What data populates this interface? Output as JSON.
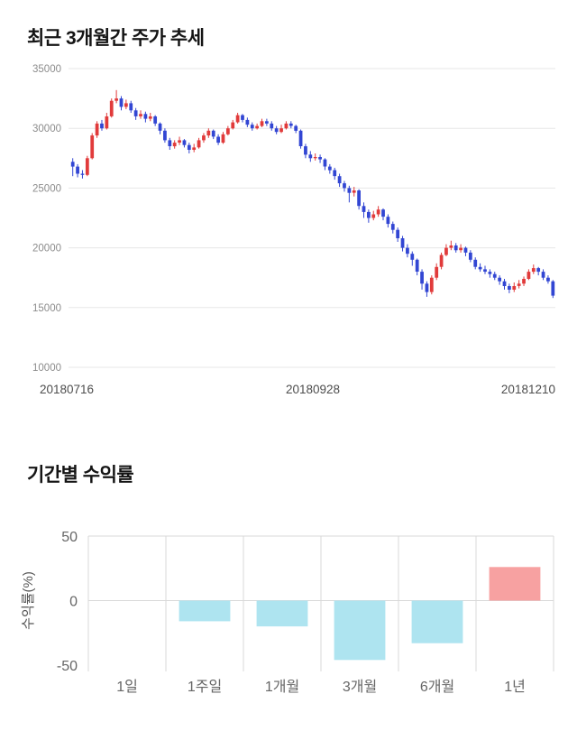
{
  "chart_data": [
    {
      "type": "candlestick",
      "title": "최근 3개월간 주가 추세",
      "ylim": [
        10000,
        35000
      ],
      "yticks": [
        10000,
        15000,
        20000,
        25000,
        30000,
        35000
      ],
      "xtick_labels": [
        "20180716",
        "20180928",
        "20181210"
      ],
      "up_color": "#e13b3b",
      "down_color": "#3246d3",
      "grid_color": "#e7e7e7",
      "candles_ohlc": [
        [
          27200,
          27500,
          26000,
          26800
        ],
        [
          26800,
          27000,
          25900,
          26200
        ],
        [
          26200,
          26500,
          25800,
          26100
        ],
        [
          26100,
          27700,
          26000,
          27500
        ],
        [
          27500,
          29600,
          27400,
          29400
        ],
        [
          29400,
          30600,
          29200,
          30400
        ],
        [
          30400,
          30700,
          29800,
          30000
        ],
        [
          30000,
          31300,
          29900,
          31000
        ],
        [
          31000,
          32500,
          30900,
          32300
        ],
        [
          32300,
          33200,
          32100,
          32500
        ],
        [
          32500,
          32700,
          31500,
          31800
        ],
        [
          31800,
          32400,
          31600,
          32100
        ],
        [
          32100,
          32300,
          31300,
          31500
        ],
        [
          31500,
          31700,
          30700,
          31000
        ],
        [
          31000,
          31500,
          30800,
          31200
        ],
        [
          31200,
          31400,
          30500,
          30800
        ],
        [
          30800,
          31300,
          30600,
          31000
        ],
        [
          31000,
          31100,
          30200,
          30400
        ],
        [
          30400,
          30500,
          29500,
          29800
        ],
        [
          29800,
          30000,
          28800,
          29000
        ],
        [
          29000,
          29200,
          28200,
          28500
        ],
        [
          28500,
          29000,
          28300,
          28800
        ],
        [
          28800,
          29300,
          28600,
          29000
        ],
        [
          29000,
          29100,
          28400,
          28600
        ],
        [
          28600,
          28800,
          27900,
          28200
        ],
        [
          28200,
          28700,
          28000,
          28400
        ],
        [
          28400,
          29200,
          28300,
          29000
        ],
        [
          29000,
          29600,
          28800,
          29400
        ],
        [
          29400,
          30000,
          29200,
          29800
        ],
        [
          29800,
          29900,
          29100,
          29300
        ],
        [
          29300,
          29500,
          28600,
          28800
        ],
        [
          28800,
          29700,
          28700,
          29500
        ],
        [
          29500,
          30200,
          29400,
          30000
        ],
        [
          30000,
          30700,
          29900,
          30500
        ],
        [
          30500,
          31300,
          30400,
          31100
        ],
        [
          31100,
          31200,
          30500,
          30700
        ],
        [
          30700,
          30900,
          30100,
          30300
        ],
        [
          30300,
          30500,
          29800,
          30000
        ],
        [
          30000,
          30400,
          29900,
          30200
        ],
        [
          30200,
          30800,
          30100,
          30600
        ],
        [
          30600,
          30800,
          30200,
          30400
        ],
        [
          30400,
          30600,
          29800,
          30000
        ],
        [
          30000,
          30200,
          29500,
          29700
        ],
        [
          29700,
          30300,
          29600,
          30000
        ],
        [
          30000,
          30600,
          29900,
          30400
        ],
        [
          30400,
          30600,
          30000,
          30200
        ],
        [
          30200,
          30300,
          29600,
          29800
        ],
        [
          29800,
          29900,
          28300,
          28500
        ],
        [
          28500,
          28700,
          27500,
          27800
        ],
        [
          27800,
          28100,
          27200,
          27500
        ],
        [
          27500,
          27900,
          27300,
          27600
        ],
        [
          27600,
          27800,
          27100,
          27400
        ],
        [
          27400,
          27500,
          26500,
          26800
        ],
        [
          26800,
          27000,
          26200,
          26500
        ],
        [
          26500,
          26700,
          25700,
          26000
        ],
        [
          26000,
          26200,
          25100,
          25400
        ],
        [
          25400,
          25600,
          24700,
          25000
        ],
        [
          25000,
          25200,
          23800,
          24600
        ],
        [
          24600,
          25100,
          24300,
          24800
        ],
        [
          24800,
          24900,
          23200,
          23500
        ],
        [
          23500,
          23800,
          22500,
          23000
        ],
        [
          23000,
          23200,
          22100,
          22500
        ],
        [
          22500,
          23100,
          22300,
          22800
        ],
        [
          22800,
          23500,
          22600,
          23200
        ],
        [
          23200,
          23300,
          22300,
          22600
        ],
        [
          22600,
          22800,
          21700,
          22000
        ],
        [
          22000,
          22200,
          21200,
          21500
        ],
        [
          21500,
          21700,
          20500,
          20800
        ],
        [
          20800,
          21000,
          19700,
          20000
        ],
        [
          20000,
          20300,
          19200,
          19500
        ],
        [
          19500,
          19700,
          18500,
          19000
        ],
        [
          19000,
          19100,
          17700,
          18000
        ],
        [
          18000,
          18200,
          16500,
          17000
        ],
        [
          17000,
          17200,
          15900,
          16300
        ],
        [
          16300,
          17700,
          16100,
          17500
        ],
        [
          17500,
          18700,
          17300,
          18400
        ],
        [
          18400,
          19600,
          18200,
          19400
        ],
        [
          19400,
          20300,
          19300,
          20000
        ],
        [
          20000,
          20600,
          19800,
          20200
        ],
        [
          20200,
          20400,
          19600,
          19800
        ],
        [
          19800,
          20300,
          19600,
          20000
        ],
        [
          20000,
          20100,
          19300,
          19600
        ],
        [
          19600,
          19800,
          18800,
          19000
        ],
        [
          19000,
          19200,
          18200,
          18400
        ],
        [
          18400,
          18700,
          18000,
          18200
        ],
        [
          18200,
          18500,
          17800,
          18000
        ],
        [
          18000,
          18200,
          17500,
          17800
        ],
        [
          17800,
          18000,
          17300,
          17500
        ],
        [
          17500,
          17700,
          16900,
          17200
        ],
        [
          17200,
          17400,
          16500,
          16800
        ],
        [
          16800,
          17000,
          16200,
          16500
        ],
        [
          16500,
          17100,
          16300,
          16800
        ],
        [
          16800,
          17300,
          16600,
          17000
        ],
        [
          17000,
          17600,
          16800,
          17400
        ],
        [
          17400,
          18200,
          17300,
          18000
        ],
        [
          18000,
          18600,
          17800,
          18300
        ],
        [
          18300,
          18400,
          17700,
          18000
        ],
        [
          18000,
          18200,
          17300,
          17500
        ],
        [
          17500,
          17700,
          17000,
          17200
        ],
        [
          17200,
          17300,
          15800,
          16000
        ]
      ]
    },
    {
      "type": "bar",
      "title": "기간별 수익률",
      "ylabel": "수익률(%)",
      "categories": [
        "1일",
        "1주일",
        "1개월",
        "3개월",
        "6개월",
        "1년"
      ],
      "values": [
        0,
        -16,
        -20,
        -46,
        -33,
        26
      ],
      "yticks": [
        50,
        0,
        -50
      ],
      "ylim": [
        -50,
        50
      ],
      "positive_color": "#f7a1a1",
      "negative_color": "#aee4f0",
      "grid_color": "#d9d9d9",
      "legend": "none"
    }
  ]
}
